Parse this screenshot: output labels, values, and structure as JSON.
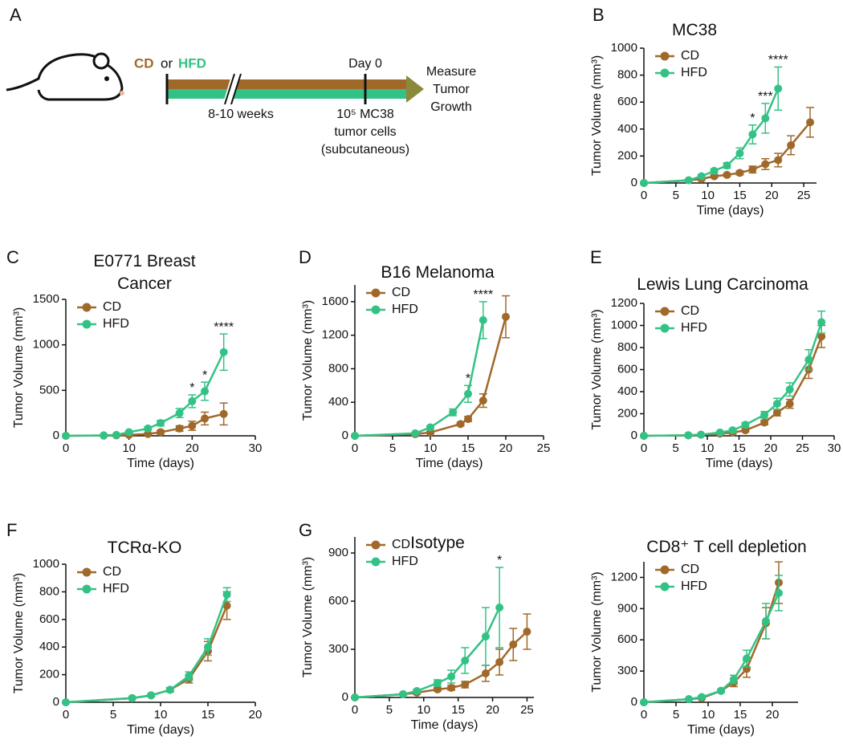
{
  "diagram": {
    "panel": "A",
    "diet_1": "CD",
    "or": "or",
    "diet_2": "HFD",
    "duration": "8-10 weeks",
    "day": "Day 0",
    "cells": [
      "10⁵ MC38",
      "tumor cells",
      "(subcutaneous)"
    ],
    "outcome": [
      "Measure",
      "Tumor",
      "Growth"
    ]
  },
  "chart_data": [
    {
      "type": "line",
      "panel": "B",
      "title": "MC38",
      "x_label": "Time (days)",
      "y_label": "Tumor Volume (mm³)",
      "legend": "upper left",
      "xlim": [
        0,
        27
      ],
      "xticks": [
        0,
        5,
        10,
        15,
        20,
        25
      ],
      "ylim": [
        0,
        1000
      ],
      "yticks": [
        0,
        200,
        400,
        600,
        800,
        1000
      ],
      "series": [
        {
          "name": "CD",
          "color": "#a0692a",
          "x": [
            0,
            7,
            9,
            11,
            13,
            15,
            17,
            19,
            21,
            23,
            26
          ],
          "values": [
            0,
            20,
            30,
            50,
            60,
            75,
            100,
            140,
            170,
            280,
            450
          ],
          "errors": [
            0,
            5,
            10,
            10,
            10,
            15,
            25,
            40,
            50,
            70,
            110
          ]
        },
        {
          "name": "HFD",
          "color": "#33c285",
          "x": [
            0,
            7,
            9,
            11,
            13,
            15,
            17,
            19,
            21
          ],
          "values": [
            0,
            20,
            50,
            90,
            130,
            220,
            360,
            480,
            700
          ],
          "errors": [
            0,
            5,
            10,
            15,
            20,
            40,
            70,
            110,
            160
          ]
        }
      ],
      "annotations": [
        {
          "text": "*",
          "x": 17
        },
        {
          "text": "***",
          "x": 19
        },
        {
          "text": "****",
          "x": 21
        }
      ]
    },
    {
      "type": "line",
      "panel": "C",
      "title": "E0771 Breast Cancer",
      "x_label": "Time (days)",
      "y_label": "Tumor Volume (mm³)",
      "legend": "upper left",
      "xlim": [
        0,
        30
      ],
      "xticks": [
        0,
        10,
        20,
        30
      ],
      "ylim": [
        0,
        1500
      ],
      "yticks": [
        0,
        500,
        1000,
        1500
      ],
      "series": [
        {
          "name": "CD",
          "color": "#a0692a",
          "x": [
            0,
            6,
            8,
            10,
            13,
            15,
            18,
            20,
            22,
            25
          ],
          "values": [
            0,
            3,
            5,
            10,
            20,
            40,
            80,
            110,
            190,
            240
          ],
          "errors": [
            0,
            3,
            5,
            5,
            10,
            20,
            30,
            50,
            70,
            120
          ]
        },
        {
          "name": "HFD",
          "color": "#33c285",
          "x": [
            0,
            6,
            8,
            10,
            13,
            15,
            18,
            20,
            22,
            25
          ],
          "values": [
            0,
            5,
            10,
            40,
            80,
            140,
            250,
            380,
            490,
            920
          ],
          "errors": [
            0,
            3,
            5,
            10,
            20,
            30,
            50,
            70,
            100,
            200
          ]
        }
      ],
      "annotations": [
        {
          "text": "*",
          "x": 20
        },
        {
          "text": "*",
          "x": 22
        },
        {
          "text": "****",
          "x": 25
        }
      ]
    },
    {
      "type": "line",
      "panel": "D",
      "title": "B16 Melanoma",
      "x_label": "Time (days)",
      "y_label": "Tumor Volume (mm³)",
      "legend": "upper left",
      "xlim": [
        0,
        25
      ],
      "xticks": [
        0,
        5,
        10,
        15,
        20,
        25
      ],
      "ylim": [
        0,
        1800
      ],
      "yticks": [
        0,
        400,
        800,
        1200,
        1600
      ],
      "series": [
        {
          "name": "CD",
          "color": "#a0692a",
          "x": [
            0,
            8,
            10,
            14,
            15,
            17,
            20
          ],
          "values": [
            0,
            20,
            40,
            140,
            200,
            420,
            1420
          ],
          "errors": [
            0,
            5,
            10,
            20,
            30,
            80,
            250
          ]
        },
        {
          "name": "HFD",
          "color": "#33c285",
          "x": [
            0,
            8,
            10,
            13,
            15,
            17
          ],
          "values": [
            0,
            30,
            100,
            280,
            500,
            1380
          ],
          "errors": [
            0,
            5,
            20,
            40,
            100,
            220
          ]
        }
      ],
      "annotations": [
        {
          "text": "*",
          "x": 15
        },
        {
          "text": "****",
          "x": 17
        }
      ]
    },
    {
      "type": "line",
      "panel": "E",
      "title": "Lewis Lung Carcinoma",
      "x_label": "Time (days)",
      "y_label": "Tumor Volume (mm³)",
      "legend": "upper left",
      "xlim": [
        0,
        30
      ],
      "xticks": [
        0,
        5,
        10,
        15,
        20,
        25,
        30
      ],
      "ylim": [
        0,
        1200
      ],
      "yticks": [
        0,
        200,
        400,
        600,
        800,
        1000,
        1200
      ],
      "series": [
        {
          "name": "CD",
          "color": "#a0692a",
          "x": [
            0,
            7,
            9,
            12,
            14,
            16,
            19,
            21,
            23,
            26,
            28
          ],
          "values": [
            0,
            5,
            10,
            20,
            30,
            50,
            120,
            210,
            290,
            600,
            900
          ],
          "errors": [
            0,
            3,
            5,
            10,
            10,
            15,
            20,
            30,
            40,
            80,
            100
          ]
        },
        {
          "name": "HFD",
          "color": "#33c285",
          "x": [
            0,
            7,
            9,
            12,
            14,
            16,
            19,
            21,
            23,
            26,
            28
          ],
          "values": [
            0,
            5,
            10,
            30,
            50,
            100,
            190,
            290,
            420,
            690,
            1030
          ],
          "errors": [
            0,
            3,
            5,
            10,
            15,
            20,
            30,
            50,
            60,
            90,
            100
          ]
        }
      ],
      "annotations": []
    },
    {
      "type": "line",
      "panel": "F",
      "title": "TCRα-KO",
      "x_label": "Time (days)",
      "y_label": "Tumor Volume (mm³)",
      "legend": "upper left",
      "xlim": [
        0,
        20
      ],
      "xticks": [
        0,
        5,
        10,
        15,
        20
      ],
      "ylim": [
        0,
        1000
      ],
      "yticks": [
        0,
        200,
        400,
        600,
        800,
        1000
      ],
      "series": [
        {
          "name": "CD",
          "color": "#a0692a",
          "x": [
            0,
            7,
            9,
            11,
            13,
            15,
            17
          ],
          "values": [
            0,
            30,
            50,
            90,
            170,
            370,
            700
          ],
          "errors": [
            0,
            5,
            10,
            15,
            30,
            70,
            100
          ]
        },
        {
          "name": "HFD",
          "color": "#33c285",
          "x": [
            0,
            7,
            9,
            11,
            13,
            15,
            17
          ],
          "values": [
            0,
            30,
            50,
            90,
            190,
            400,
            780
          ],
          "errors": [
            0,
            5,
            10,
            15,
            30,
            60,
            50
          ]
        }
      ],
      "annotations": []
    },
    {
      "type": "line",
      "panel": "G",
      "title": "Isotype",
      "x_label": "Time (days)",
      "y_label": "Tumor Volume (mm³)",
      "legend": "upper left",
      "xlim": [
        0,
        26
      ],
      "xticks": [
        0,
        5,
        10,
        15,
        20,
        25
      ],
      "ylim": [
        0,
        1000
      ],
      "yticks": [
        0,
        300,
        600,
        900
      ],
      "series": [
        {
          "name": "CD",
          "color": "#a0692a",
          "x": [
            0,
            7,
            9,
            12,
            14,
            16,
            19,
            21,
            23,
            25
          ],
          "values": [
            0,
            20,
            30,
            50,
            60,
            80,
            150,
            220,
            330,
            410
          ],
          "errors": [
            0,
            5,
            10,
            10,
            15,
            20,
            50,
            80,
            100,
            110
          ]
        },
        {
          "name": "HFD",
          "color": "#33c285",
          "x": [
            0,
            7,
            9,
            12,
            14,
            16,
            19,
            21
          ],
          "values": [
            0,
            20,
            40,
            90,
            130,
            230,
            380,
            560
          ],
          "errors": [
            0,
            5,
            10,
            20,
            40,
            80,
            180,
            250
          ]
        }
      ],
      "annotations": [
        {
          "text": "*",
          "x": 21
        }
      ]
    },
    {
      "type": "line",
      "title": "CD8⁺ T cell depletion",
      "x_label": "Time (days)",
      "y_label": "Tumor Volume (mm³)",
      "legend": "upper left",
      "xlim": [
        0,
        24
      ],
      "xticks": [
        0,
        5,
        10,
        15,
        20
      ],
      "ylim": [
        0,
        1350
      ],
      "yticks": [
        0,
        300,
        600,
        900,
        1200
      ],
      "series": [
        {
          "name": "CD",
          "color": "#a0692a",
          "x": [
            0,
            7,
            9,
            12,
            14,
            16,
            19,
            21
          ],
          "values": [
            0,
            30,
            40,
            110,
            190,
            320,
            760,
            1150
          ],
          "errors": [
            0,
            5,
            10,
            15,
            40,
            80,
            150,
            200
          ]
        },
        {
          "name": "HFD",
          "color": "#33c285",
          "x": [
            0,
            7,
            9,
            12,
            14,
            16,
            19,
            21
          ],
          "values": [
            0,
            30,
            50,
            110,
            220,
            420,
            780,
            1050
          ],
          "errors": [
            0,
            5,
            10,
            15,
            40,
            80,
            170,
            170
          ]
        }
      ],
      "annotations": []
    }
  ]
}
